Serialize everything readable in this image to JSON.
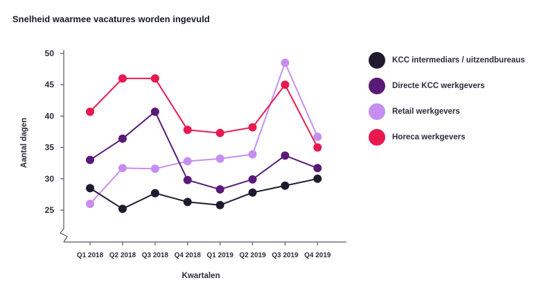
{
  "title": "Snelheid waarmee vacatures worden ingevuld",
  "chart_data": {
    "type": "line",
    "title": "Snelheid waarmee vacatures worden ingevuld",
    "xlabel": "Kwartalen",
    "ylabel": "Aantal dagen",
    "categories": [
      "Q1 2018",
      "Q2 2018",
      "Q3 2018",
      "Q4 2018",
      "Q1 2019",
      "Q2 2019",
      "Q3 2019",
      "Q4 2019"
    ],
    "yticks": [
      25,
      30,
      35,
      40,
      45,
      50
    ],
    "ylim": [
      25,
      50
    ],
    "axis_break": true,
    "grid": false,
    "legend_position": "right",
    "series": [
      {
        "name": "KCC intermediars / uitzendbureaus",
        "color": "#1f1a2e",
        "values": [
          28.5,
          25.2,
          27.7,
          26.3,
          25.8,
          27.8,
          28.9,
          30.0
        ]
      },
      {
        "name": "Directe KCC werkgevers",
        "color": "#5a1a78",
        "values": [
          33.0,
          36.4,
          40.7,
          29.8,
          28.3,
          29.9,
          33.7,
          31.7
        ]
      },
      {
        "name": "Retail werkgevers",
        "color": "#c58ef0",
        "values": [
          26.0,
          31.7,
          31.6,
          32.8,
          33.2,
          33.9,
          48.5,
          36.7
        ]
      },
      {
        "name": "Horeca werkgevers",
        "color": "#e8194f",
        "values": [
          40.7,
          46.0,
          46.0,
          37.8,
          37.3,
          38.2,
          45.0,
          35.0
        ]
      }
    ]
  }
}
